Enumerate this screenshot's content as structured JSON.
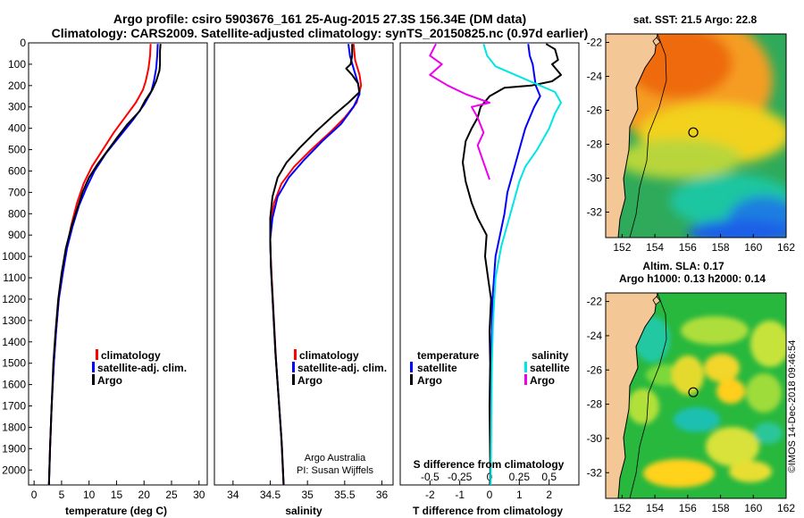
{
  "header": {
    "line1": "Argo profile: csiro 5903676_161 25-Aug-2015 27.3S 156.34E (DM data)",
    "line2": "Climatology: CARS2009. Satellite-adjusted climatology: synTS_20150825.nc (0.97d earlier)"
  },
  "credit": {
    "line1": "Argo Australia",
    "line2": "PI: Susan Wijffels"
  },
  "stamp": "©IMOS 14-Dec-2018 09:46:54",
  "colors": {
    "climatology": "#ff0000",
    "satellite": "#0000ff",
    "argo": "#000000",
    "sat_salinity": "#00e5e5",
    "argo_salinity": "#ee00ee"
  },
  "chart_data": [
    {
      "type": "line",
      "id": "temperature",
      "xlabel": "temperature (deg C)",
      "ylabel": "",
      "xlim": [
        -1,
        31.5
      ],
      "ylim": [
        2070,
        0
      ],
      "xticks": [
        0,
        5,
        10,
        15,
        20,
        25,
        30
      ],
      "yticks": [
        0,
        100,
        200,
        300,
        400,
        500,
        600,
        700,
        800,
        900,
        1000,
        1100,
        1200,
        1300,
        1400,
        1500,
        1600,
        1700,
        1800,
        1900,
        2000
      ],
      "legend": [
        "climatology",
        "satellite-adj. clim.",
        "Argo"
      ],
      "series": [
        {
          "name": "climatology",
          "color": "#ff0000",
          "points": [
            [
              21.2,
              5
            ],
            [
              21.1,
              60
            ],
            [
              20.8,
              120
            ],
            [
              20.3,
              180
            ],
            [
              19.8,
              220
            ],
            [
              18.5,
              280
            ],
            [
              16.5,
              350
            ],
            [
              14.5,
              420
            ],
            [
              12.5,
              500
            ],
            [
              10.5,
              580
            ],
            [
              9.0,
              660
            ],
            [
              7.8,
              750
            ],
            [
              6.8,
              850
            ],
            [
              6.0,
              950
            ],
            [
              5.2,
              1080
            ],
            [
              4.5,
              1200
            ],
            [
              4.0,
              1350
            ],
            [
              3.6,
              1500
            ],
            [
              3.2,
              1700
            ],
            [
              2.9,
              1900
            ],
            [
              2.7,
              2070
            ]
          ]
        },
        {
          "name": "satellite-adj. clim.",
          "color": "#0000ff",
          "points": [
            [
              22.5,
              5
            ],
            [
              22.4,
              60
            ],
            [
              22.2,
              120
            ],
            [
              21.8,
              180
            ],
            [
              21.3,
              230
            ],
            [
              20.0,
              290
            ],
            [
              18.0,
              360
            ],
            [
              15.5,
              440
            ],
            [
              13.0,
              520
            ],
            [
              11.0,
              600
            ],
            [
              9.5,
              680
            ],
            [
              8.2,
              760
            ],
            [
              7.0,
              860
            ],
            [
              6.0,
              960
            ],
            [
              5.2,
              1080
            ],
            [
              4.5,
              1200
            ],
            [
              4.0,
              1350
            ],
            [
              3.6,
              1500
            ],
            [
              3.2,
              1700
            ],
            [
              2.9,
              1900
            ],
            [
              2.7,
              2070
            ]
          ]
        },
        {
          "name": "Argo",
          "color": "#000000",
          "points": [
            [
              23.0,
              5
            ],
            [
              22.9,
              40
            ],
            [
              22.9,
              100
            ],
            [
              22.8,
              130
            ],
            [
              22.2,
              180
            ],
            [
              21.5,
              220
            ],
            [
              20.2,
              270
            ],
            [
              19.2,
              320
            ],
            [
              17.0,
              380
            ],
            [
              15.2,
              440
            ],
            [
              13.5,
              500
            ],
            [
              11.5,
              570
            ],
            [
              10.0,
              630
            ],
            [
              8.8,
              700
            ],
            [
              7.8,
              780
            ],
            [
              6.8,
              860
            ],
            [
              5.8,
              960
            ],
            [
              5.0,
              1080
            ],
            [
              4.4,
              1200
            ],
            [
              3.9,
              1350
            ],
            [
              3.5,
              1500
            ],
            [
              3.2,
              1700
            ],
            [
              2.9,
              1900
            ],
            [
              2.7,
              2070
            ]
          ]
        }
      ]
    },
    {
      "type": "line",
      "id": "salinity",
      "xlabel": "salinity",
      "xlim": [
        33.75,
        36.15
      ],
      "ylim": [
        2070,
        0
      ],
      "xticks": [
        34,
        34.5,
        35,
        35.5,
        36
      ],
      "xticklabels": [
        "34",
        "34.5",
        "35",
        "35.5",
        "36"
      ],
      "legend": [
        "climatology",
        "satellite-adj. clim.",
        "Argo"
      ],
      "series": [
        {
          "name": "climatology",
          "color": "#ff0000",
          "points": [
            [
              35.62,
              5
            ],
            [
              35.64,
              80
            ],
            [
              35.7,
              150
            ],
            [
              35.72,
              200
            ],
            [
              35.66,
              280
            ],
            [
              35.5,
              350
            ],
            [
              35.3,
              420
            ],
            [
              35.05,
              500
            ],
            [
              34.82,
              580
            ],
            [
              34.65,
              660
            ],
            [
              34.55,
              750
            ],
            [
              34.5,
              850
            ],
            [
              34.5,
              950
            ],
            [
              34.52,
              1100
            ],
            [
              34.55,
              1300
            ],
            [
              34.58,
              1500
            ],
            [
              34.62,
              1700
            ],
            [
              34.66,
              1900
            ],
            [
              34.68,
              2070
            ]
          ]
        },
        {
          "name": "satellite-adj. clim.",
          "color": "#0000ff",
          "points": [
            [
              35.55,
              5
            ],
            [
              35.57,
              60
            ],
            [
              35.62,
              120
            ],
            [
              35.68,
              190
            ],
            [
              35.7,
              240
            ],
            [
              35.62,
              300
            ],
            [
              35.45,
              380
            ],
            [
              35.2,
              460
            ],
            [
              34.95,
              550
            ],
            [
              34.75,
              630
            ],
            [
              34.6,
              720
            ],
            [
              34.53,
              820
            ],
            [
              34.5,
              920
            ],
            [
              34.51,
              1050
            ],
            [
              34.54,
              1250
            ],
            [
              34.57,
              1450
            ],
            [
              34.61,
              1650
            ],
            [
              34.65,
              1850
            ],
            [
              34.68,
              2070
            ]
          ]
        },
        {
          "name": "Argo",
          "color": "#000000",
          "points": [
            [
              35.6,
              5
            ],
            [
              35.6,
              60
            ],
            [
              35.58,
              100
            ],
            [
              35.52,
              120
            ],
            [
              35.6,
              150
            ],
            [
              35.68,
              190
            ],
            [
              35.7,
              230
            ],
            [
              35.55,
              280
            ],
            [
              35.35,
              340
            ],
            [
              35.1,
              420
            ],
            [
              34.9,
              490
            ],
            [
              34.72,
              560
            ],
            [
              34.6,
              630
            ],
            [
              34.53,
              720
            ],
            [
              34.5,
              820
            ],
            [
              34.5,
              920
            ],
            [
              34.51,
              1050
            ],
            [
              34.54,
              1250
            ],
            [
              34.57,
              1450
            ],
            [
              34.61,
              1650
            ],
            [
              34.65,
              1850
            ],
            [
              34.68,
              2070
            ]
          ]
        }
      ]
    },
    {
      "type": "line",
      "id": "differences",
      "xlabel": "T difference from climatology",
      "top_xlabel": "S difference from climatology",
      "xlim": [
        -3.0,
        3.0
      ],
      "xticks": [
        -2,
        -1,
        0,
        1,
        2
      ],
      "top_xticks": [
        -0.5,
        -0.25,
        0,
        0.25,
        0.5
      ],
      "top_xticklabels": [
        "-0.5",
        "-0.25",
        "0",
        "0.25",
        "0.5"
      ],
      "ylim": [
        2070,
        0
      ],
      "legend": {
        "temperature_title": "temperature",
        "salinity_title": "salinity",
        "temperature": [
          "satellite",
          "Argo"
        ],
        "salinity": [
          "satellite",
          "Argo"
        ]
      },
      "series": [
        {
          "name": "T satellite",
          "color": "#0000ff",
          "points": [
            [
              1.3,
              5
            ],
            [
              1.35,
              60
            ],
            [
              1.45,
              100
            ],
            [
              1.5,
              150
            ],
            [
              1.55,
              200
            ],
            [
              1.7,
              250
            ],
            [
              1.5,
              300
            ],
            [
              1.2,
              400
            ],
            [
              1.0,
              500
            ],
            [
              0.8,
              600
            ],
            [
              0.6,
              700
            ],
            [
              0.5,
              800
            ],
            [
              0.35,
              900
            ],
            [
              0.2,
              1000
            ],
            [
              0.1,
              1200
            ],
            [
              0.05,
              1500
            ],
            [
              0.03,
              2070
            ]
          ]
        },
        {
          "name": "T Argo",
          "color": "#000000",
          "points": [
            [
              1.9,
              5
            ],
            [
              2.2,
              30
            ],
            [
              2.3,
              80
            ],
            [
              2.1,
              100
            ],
            [
              2.4,
              150
            ],
            [
              2.1,
              180
            ],
            [
              1.4,
              200
            ],
            [
              0.5,
              210
            ],
            [
              0.0,
              250
            ],
            [
              -0.3,
              300
            ],
            [
              -0.4,
              350
            ],
            [
              -0.6,
              400
            ],
            [
              -0.8,
              460
            ],
            [
              -0.9,
              560
            ],
            [
              -0.8,
              650
            ],
            [
              -0.6,
              750
            ],
            [
              -0.4,
              820
            ],
            [
              -0.1,
              900
            ],
            [
              -0.15,
              1000
            ],
            [
              -0.05,
              1100
            ],
            [
              0.05,
              1200
            ],
            [
              0.0,
              1350
            ],
            [
              0.02,
              1500
            ],
            [
              0.0,
              1700
            ],
            [
              0.03,
              2070
            ]
          ]
        },
        {
          "name": "S satellite",
          "color": "#00e5e5",
          "points": [
            [
              -0.05,
              5
            ],
            [
              -0.02,
              60
            ],
            [
              0.05,
              110
            ],
            [
              0.3,
              170
            ],
            [
              0.55,
              230
            ],
            [
              0.6,
              280
            ],
            [
              0.55,
              330
            ],
            [
              0.5,
              400
            ],
            [
              0.4,
              500
            ],
            [
              0.3,
              580
            ],
            [
              0.25,
              650
            ],
            [
              0.2,
              750
            ],
            [
              0.15,
              850
            ],
            [
              0.1,
              950
            ],
            [
              0.05,
              1100
            ],
            [
              0.03,
              1300
            ],
            [
              0.02,
              1500
            ],
            [
              0.01,
              2070
            ]
          ]
        },
        {
          "name": "S Argo",
          "color": "#ee00ee",
          "points": [
            [
              -0.45,
              5
            ],
            [
              -0.5,
              60
            ],
            [
              -0.4,
              100
            ],
            [
              -0.5,
              150
            ],
            [
              -0.35,
              200
            ],
            [
              -0.2,
              240
            ],
            [
              0.0,
              280
            ],
            [
              -0.15,
              300
            ],
            [
              -0.1,
              350
            ],
            [
              -0.05,
              420
            ],
            [
              -0.1,
              480
            ],
            [
              -0.05,
              560
            ],
            [
              0.0,
              640
            ]
          ]
        }
      ]
    },
    {
      "type": "heatmap",
      "id": "sst_map",
      "title": "sat. SST: 21.5 Argo: 22.8",
      "xlim": [
        151,
        162
      ],
      "ylim": [
        -33.5,
        -21.5
      ],
      "xticks": [
        152,
        154,
        156,
        158,
        160,
        162
      ],
      "yticks": [
        -22,
        -24,
        -26,
        -28,
        -30,
        -32
      ],
      "profile_location": [
        156.34,
        -27.3
      ]
    },
    {
      "type": "heatmap",
      "id": "sla_map",
      "title_line1": "Altim. SLA: 0.17",
      "title_line2": "Argo h1000: 0.13 h2000: 0.14",
      "xlim": [
        151,
        162
      ],
      "ylim": [
        -33.5,
        -21.5
      ],
      "xticks": [
        152,
        154,
        156,
        158,
        160,
        162
      ],
      "yticks": [
        -22,
        -24,
        -26,
        -28,
        -30,
        -32
      ],
      "profile_location": [
        156.34,
        -27.3
      ]
    }
  ]
}
